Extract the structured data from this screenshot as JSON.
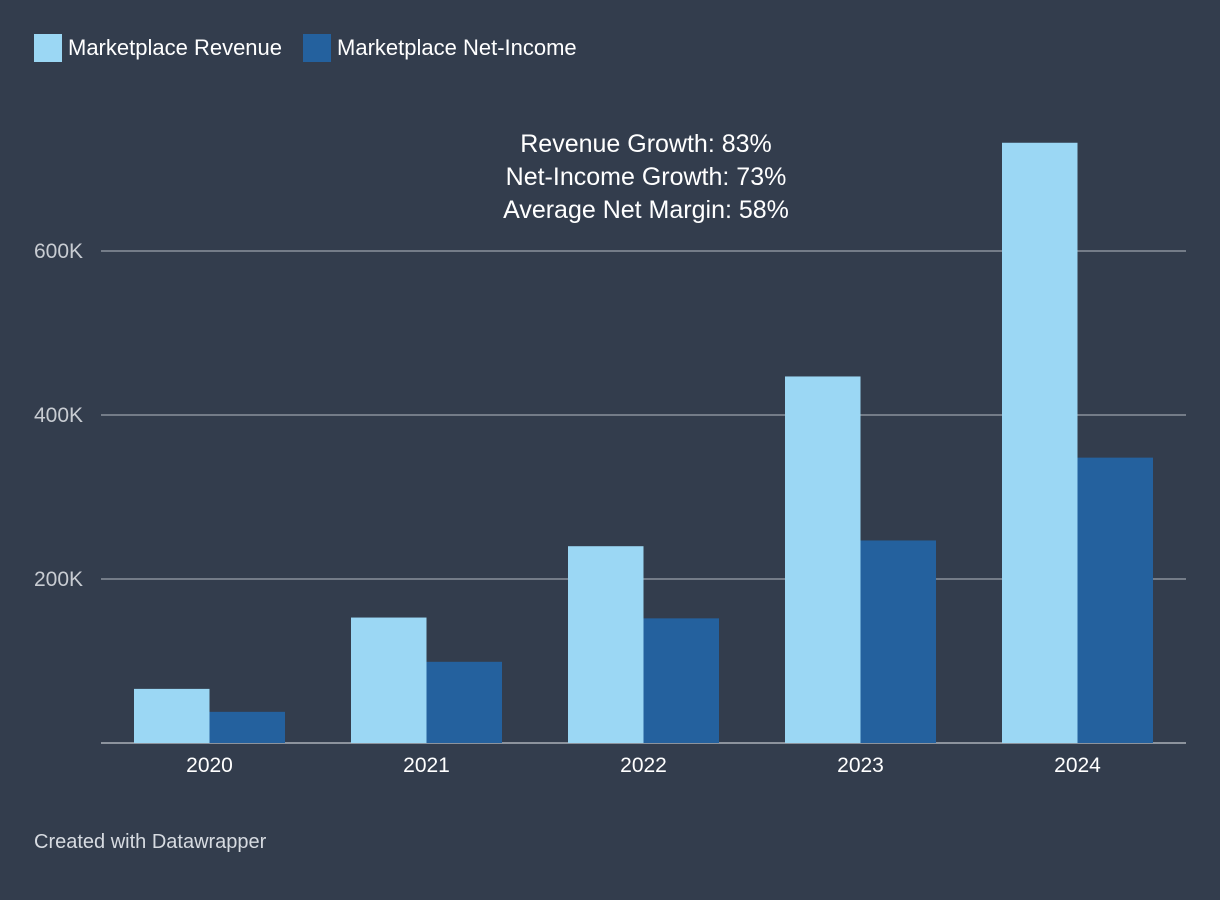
{
  "chart_data": {
    "type": "bar",
    "categories": [
      "2020",
      "2021",
      "2022",
      "2023",
      "2024"
    ],
    "series": [
      {
        "name": "Marketplace Revenue",
        "color": "#9bd7f4",
        "values": [
          66000,
          153000,
          240000,
          447000,
          732000
        ]
      },
      {
        "name": "Marketplace Net-Income",
        "color": "#24619e",
        "values": [
          38000,
          99000,
          152000,
          247000,
          348000
        ]
      }
    ],
    "ylim": [
      0,
      732000
    ],
    "yticks": [
      200000,
      400000,
      600000
    ],
    "ytick_labels": [
      "200K",
      "400K",
      "600K"
    ],
    "grid": true,
    "legend_position": "top-left",
    "annotations": [
      "Revenue Growth: 83%",
      "Net-Income Growth: 73%",
      "Average Net Margin: 58%"
    ],
    "xlabel": "",
    "ylabel": ""
  },
  "footer": {
    "credit": "Created with Datawrapper"
  },
  "colors": {
    "background": "#333d4d",
    "grid": "#8a919c",
    "axis_text": "#c8ccd2"
  }
}
